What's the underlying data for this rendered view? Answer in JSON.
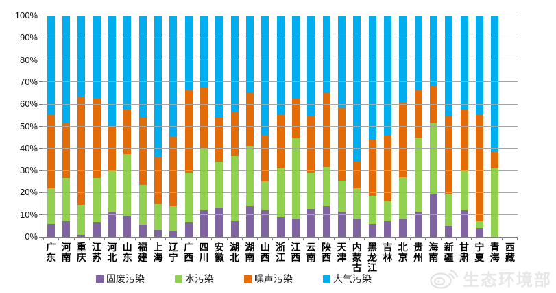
{
  "chart_data": {
    "type": "bar",
    "subtype": "stacked_percent",
    "title": "",
    "xlabel": "",
    "ylabel": "",
    "ylim": [
      0,
      100
    ],
    "grid": true,
    "legend_position": "bottom",
    "y_ticks": [
      "0%",
      "10%",
      "20%",
      "30%",
      "40%",
      "50%",
      "60%",
      "70%",
      "80%",
      "90%",
      "100%"
    ],
    "categories": [
      "广东",
      "河南",
      "重庆",
      "江苏",
      "河北",
      "山东",
      "福建",
      "上海",
      "辽宁",
      "广西",
      "四川",
      "安徽",
      "湖北",
      "湖南",
      "山西",
      "浙江",
      "江西",
      "云南",
      "陕西",
      "天津",
      "内蒙古",
      "黑龙江",
      "吉林",
      "北京",
      "贵州",
      "海南",
      "新疆",
      "甘肃",
      "宁夏",
      "青海",
      "西藏"
    ],
    "series": [
      {
        "name": "固废污染",
        "color": "#8064A2",
        "values": [
          6,
          7,
          1,
          6.5,
          11,
          9.5,
          5.5,
          3,
          2.5,
          6.5,
          12,
          13,
          7,
          14,
          12,
          9,
          8,
          12.5,
          14,
          11.5,
          8,
          6,
          7,
          8,
          11.5,
          19.5,
          5,
          12,
          4,
          0,
          0
        ]
      },
      {
        "name": "水污染",
        "color": "#92D050",
        "values": [
          16,
          19.5,
          13.5,
          20,
          19,
          28,
          18,
          12,
          11.5,
          22.5,
          28,
          21,
          29.5,
          27,
          13,
          22,
          36.5,
          16.5,
          17.5,
          14,
          14,
          12.5,
          9,
          19,
          33.5,
          32,
          14.5,
          18,
          3,
          31,
          0
        ]
      },
      {
        "name": "噪声污染",
        "color": "#E36C09",
        "values": [
          33,
          25,
          49,
          36.5,
          20,
          20.5,
          30.5,
          21,
          31.5,
          37.5,
          27.5,
          20,
          20,
          24,
          21,
          24,
          18,
          25.5,
          33.5,
          33,
          12,
          25.5,
          30,
          34,
          21.5,
          16.5,
          35,
          28,
          48,
          7.5,
          0
        ]
      },
      {
        "name": "大气污染",
        "color": "#00AEEF",
        "values": [
          45,
          48.5,
          36.5,
          37,
          50,
          42,
          46,
          64,
          54.5,
          33.5,
          32.5,
          46,
          43.5,
          35,
          54,
          45,
          37.5,
          45.5,
          35,
          41.5,
          66,
          56,
          54,
          39,
          33.5,
          32,
          45.5,
          42,
          45,
          61.5,
          0
        ]
      }
    ]
  },
  "watermark": {
    "text": "生态环境部",
    "icon": "weibo-icon"
  }
}
